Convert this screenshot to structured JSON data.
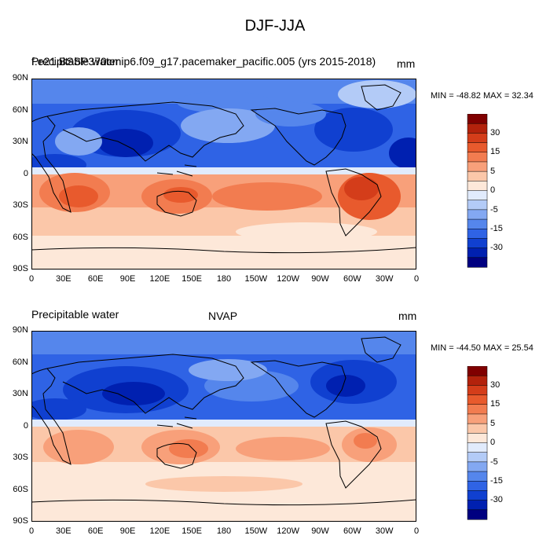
{
  "title": "DJF-JJA",
  "colors": {
    "contours": [
      "#000080",
      "#0020b0",
      "#1040d0",
      "#2f63e5",
      "#5586ec",
      "#83a8f2",
      "#b3cbf7",
      "#e1ebfc",
      "#fde8d9",
      "#fbc7a9",
      "#f8a07a",
      "#f27c50",
      "#e85a2d",
      "#d43d1a",
      "#b3220c",
      "#800000"
    ],
    "coastline": "#000000"
  },
  "colorbar": {
    "labels": [
      "30",
      "15",
      "5",
      "0",
      "-5",
      "-15",
      "-30"
    ]
  },
  "x_ticks": [
    "0",
    "30E",
    "60E",
    "90E",
    "120E",
    "150E",
    "180",
    "150W",
    "120W",
    "90W",
    "60W",
    "30W",
    "0"
  ],
  "y_ticks": [
    "90N",
    "60N",
    "30N",
    "0",
    "30S",
    "60S",
    "90S"
  ],
  "panels": [
    {
      "left_title": "Precipitable water",
      "center_title": "f.e21.BSSP370cmip6.f09_g17.pacemaker_pacific.005 (yrs 2015-2018)",
      "units": "mm",
      "min_max": "MIN = -48.82 MAX =  32.34"
    },
    {
      "left_title": "Precipitable water",
      "center_title": "NVAP",
      "units": "mm",
      "min_max": "MIN = -44.50 MAX =  25.54"
    }
  ]
}
